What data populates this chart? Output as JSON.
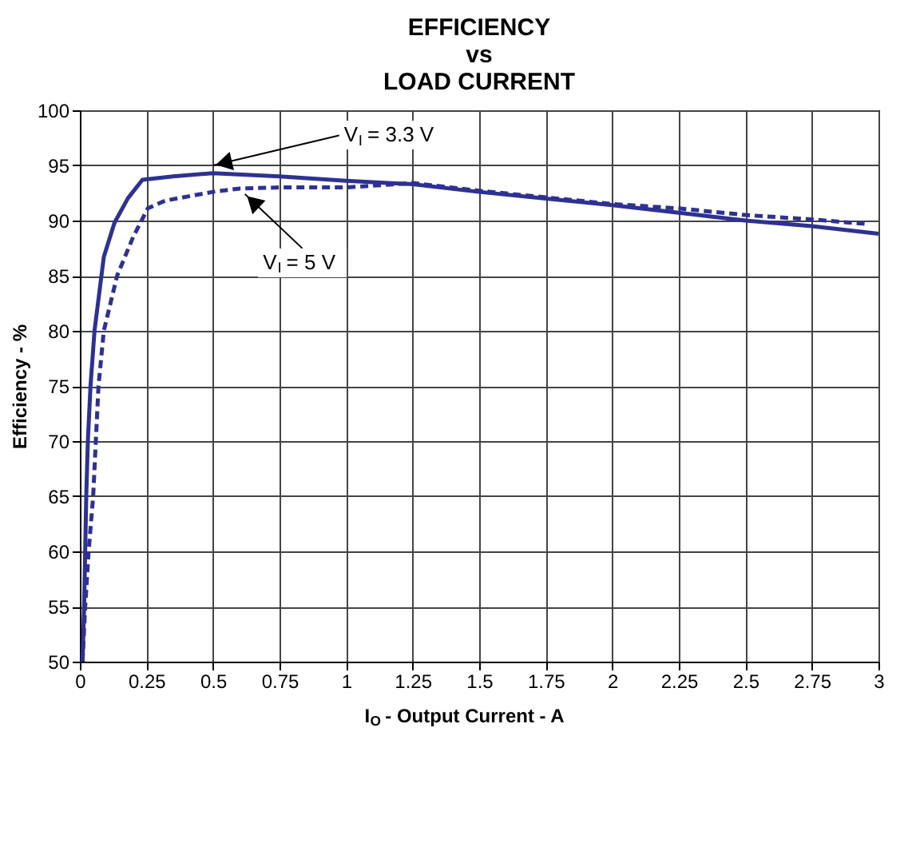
{
  "chart_data": {
    "type": "line",
    "title": "EFFICIENCY\nvs\nLOAD CURRENT",
    "xlabel": "I$_{O}$ - Output Current - A",
    "ylabel": "Efficiency - %",
    "xlim": [
      0,
      3
    ],
    "xticks": [
      0,
      0.25,
      0.5,
      0.75,
      1,
      1.25,
      1.5,
      1.75,
      2,
      2.25,
      2.5,
      2.75,
      3
    ],
    "ylim": [
      50,
      100
    ],
    "yticks": [
      50,
      55,
      60,
      65,
      70,
      75,
      80,
      85,
      90,
      95,
      100
    ],
    "grid": true,
    "series": [
      {
        "color": "#2e3192",
        "line_style": "solid",
        "x": [
          0.01,
          0.016,
          0.02,
          0.024,
          0.03,
          0.04,
          0.055,
          0.09,
          0.13,
          0.18,
          0.235,
          0.35,
          0.5,
          0.75,
          1.0,
          1.25,
          1.5,
          1.75,
          2.0,
          2.25,
          2.5,
          2.75,
          3.0
        ],
        "values": [
          50,
          55,
          60,
          65,
          70,
          75,
          80,
          86.7,
          89.8,
          92,
          93.7,
          94,
          94.3,
          94,
          93.6,
          93.3,
          92.6,
          92.0,
          91.4,
          90.7,
          90.0,
          89.5,
          88.8
        ]
      },
      {
        "color": "#2e3192",
        "line_style": "dashed",
        "x": [
          0.01,
          0.02,
          0.033,
          0.05,
          0.06,
          0.07,
          0.09,
          0.14,
          0.2,
          0.255,
          0.32,
          0.5,
          0.6,
          0.75,
          1.0,
          1.25,
          1.5,
          1.75,
          2.0,
          2.25,
          2.5,
          2.75,
          2.95
        ],
        "values": [
          50,
          55,
          60,
          65,
          70,
          75,
          80,
          85,
          88.5,
          91.1,
          91.8,
          92.6,
          92.9,
          93.0,
          93.0,
          93.4,
          92.7,
          92.1,
          91.5,
          91.1,
          90.5,
          90.1,
          89.7
        ]
      }
    ],
    "annotations": [
      {
        "text": "V$_{I}$ = 3.3 V",
        "x": 0.5,
        "y": 95.0
      },
      {
        "text": "V$_{I}$ = 5 V",
        "x": 0.62,
        "y": 92.4
      }
    ]
  }
}
